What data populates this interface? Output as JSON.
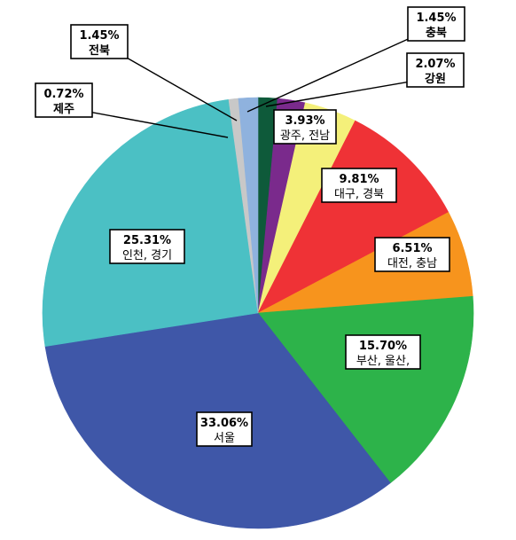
{
  "chart_data": {
    "type": "pie",
    "slices": [
      {
        "label": "충북",
        "value": 1.45,
        "value_text": "1.45%",
        "color": "#0e5a3a"
      },
      {
        "label": "강원",
        "value": 2.07,
        "value_text": "2.07%",
        "color": "#7a2a8c"
      },
      {
        "label": "광주, 전남",
        "value": 3.93,
        "value_text": "3.93%",
        "color": "#f4f07a"
      },
      {
        "label": "대구, 경북",
        "value": 9.81,
        "value_text": "9.81%",
        "color": "#ef3236"
      },
      {
        "label": "대전, 충남",
        "value": 6.51,
        "value_text": "6.51%",
        "color": "#f7941d"
      },
      {
        "label": "부산, 울산,",
        "value": 15.7,
        "value_text": "15.70%",
        "color": "#2db34a"
      },
      {
        "label": "서울",
        "value": 33.06,
        "value_text": "33.06%",
        "color": "#3f57a8"
      },
      {
        "label": "인천, 경기",
        "value": 25.31,
        "value_text": "25.31%",
        "color": "#4bc0c4"
      },
      {
        "label": "제주",
        "value": 0.72,
        "value_text": "0.72%",
        "color": "#c8c8c8"
      },
      {
        "label": "전북",
        "value": 1.45,
        "value_text": "1.45%",
        "color": "#8fb2de"
      }
    ]
  }
}
